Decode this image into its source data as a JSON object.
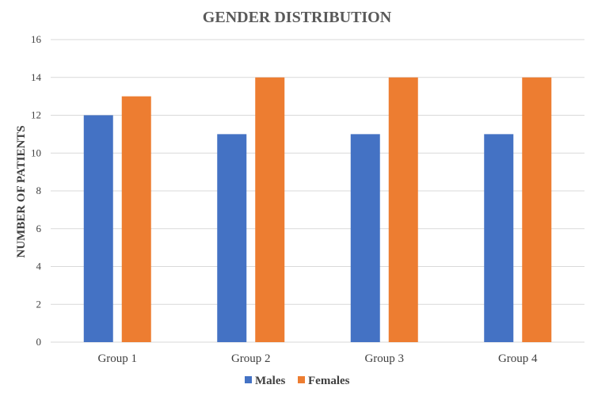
{
  "chart_data": {
    "type": "bar",
    "title": "GENDER DISTRIBUTION",
    "xlabel": "",
    "ylabel": "NUMBER OF PATIENTS",
    "categories": [
      "Group 1",
      "Group 2",
      "Group 3",
      "Group 4"
    ],
    "series": [
      {
        "name": "Males",
        "values": [
          12,
          11,
          11,
          11
        ],
        "color": "#4472C4"
      },
      {
        "name": "Females",
        "values": [
          13,
          14,
          14,
          14
        ],
        "color": "#ED7D31"
      }
    ],
    "ylim": [
      0,
      16
    ],
    "yticks": [
      0,
      2,
      4,
      6,
      8,
      10,
      12,
      14,
      16
    ],
    "grid": true,
    "legend": "bottom-center"
  },
  "colors": {
    "grid": "#D9D9D9",
    "background": "#FFFFFF"
  }
}
